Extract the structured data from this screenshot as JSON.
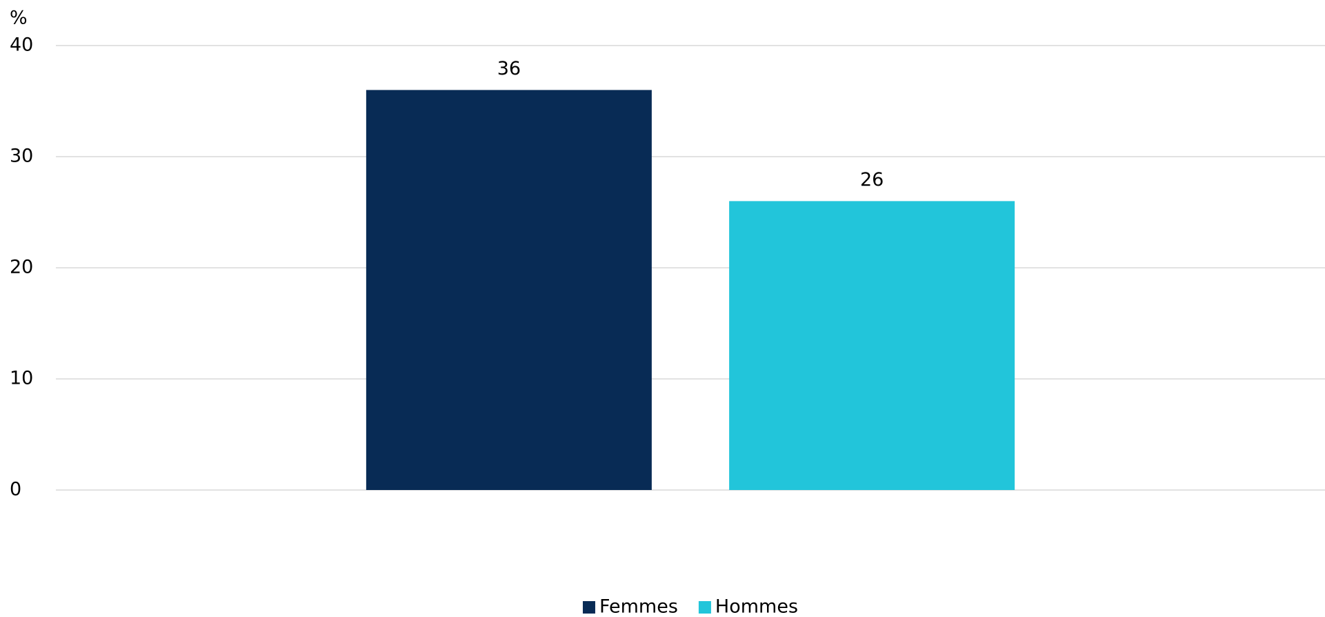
{
  "chart_data": {
    "type": "bar",
    "y_label": "%",
    "categories": [
      null
    ],
    "series": [
      {
        "name": "Femmes",
        "color": "#082b55",
        "values": [
          36
        ]
      },
      {
        "name": "Hommes",
        "color": "#22c5da",
        "values": [
          26
        ]
      }
    ],
    "ylim": [
      0,
      40
    ],
    "yticks": [
      0,
      10,
      20,
      30,
      40
    ],
    "grid": true,
    "legend": "bottom"
  }
}
